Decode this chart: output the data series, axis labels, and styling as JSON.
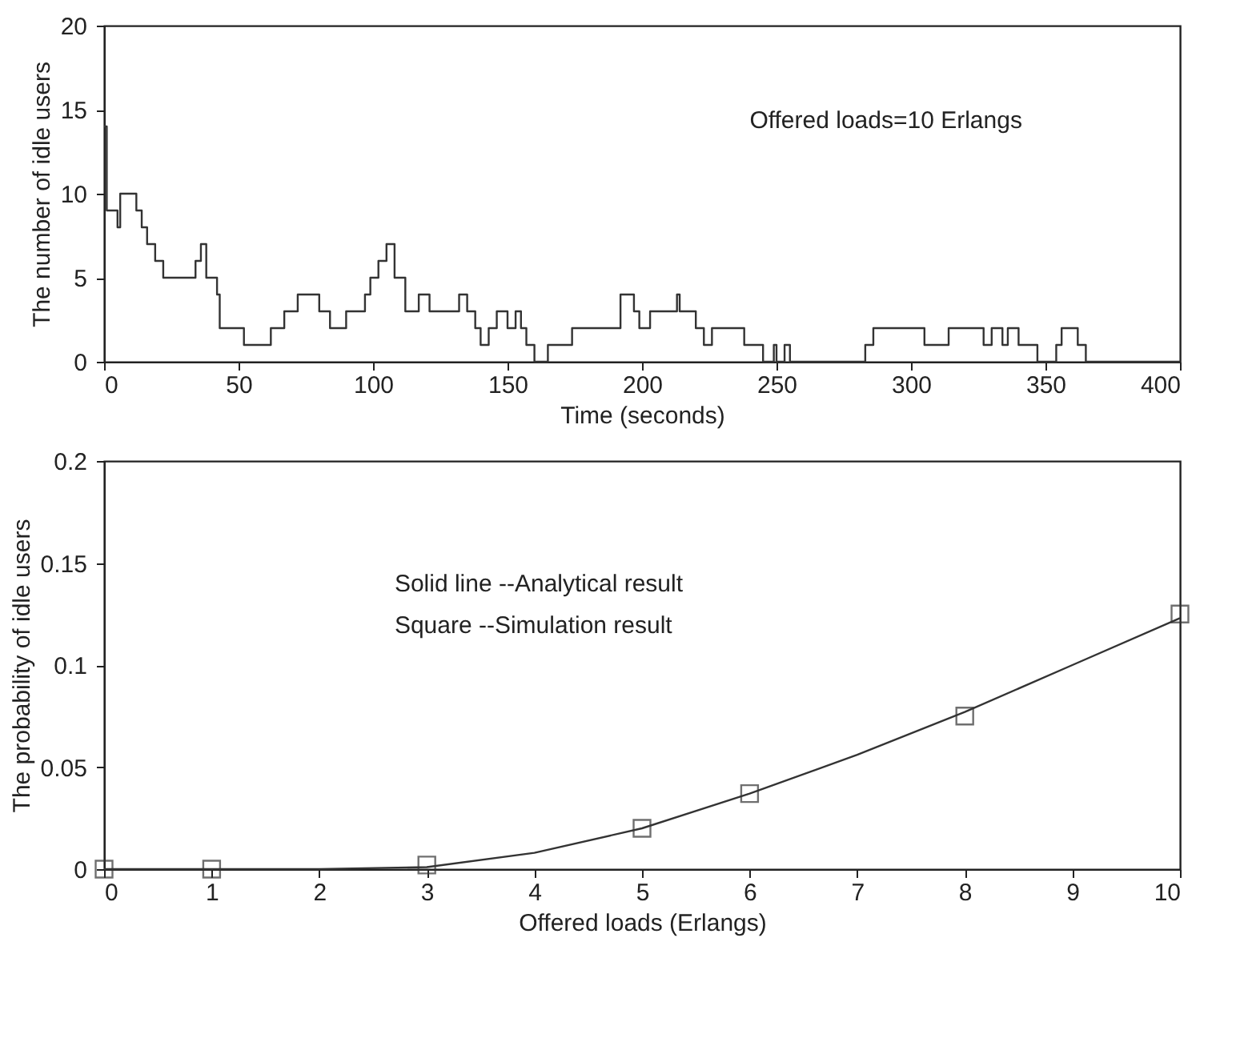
{
  "chart_data": [
    {
      "type": "step",
      "xlabel": "Time (seconds)",
      "ylabel": "The number of idle users",
      "xlim": [
        0,
        400
      ],
      "ylim": [
        0,
        20
      ],
      "xticks": [
        0,
        50,
        100,
        150,
        200,
        250,
        300,
        350,
        400
      ],
      "yticks": [
        0,
        5,
        10,
        15,
        20
      ],
      "grid": false,
      "line_style": "solid",
      "marker": "none",
      "annotations": [
        "Offered loads=10 Erlangs"
      ],
      "series": [
        {
          "color": "#333333",
          "x": [
            0,
            1,
            5,
            6,
            12,
            14,
            16,
            19,
            22,
            34,
            36,
            38,
            42,
            43,
            52,
            62,
            67,
            72,
            80,
            84,
            90,
            97,
            99,
            102,
            105,
            108,
            112,
            117,
            121,
            132,
            135,
            138,
            140,
            143,
            146,
            150,
            153,
            155,
            157,
            160,
            165,
            174,
            192,
            197,
            199,
            203,
            213,
            214,
            220,
            223,
            226,
            238,
            245,
            249,
            250,
            253,
            255,
            283,
            286,
            305,
            314,
            327,
            330,
            334,
            336,
            340,
            347,
            354,
            356,
            362,
            365,
            400
          ],
          "values": [
            14,
            9,
            8,
            10,
            9,
            8,
            7,
            6,
            5,
            6,
            7,
            5,
            4,
            2,
            1,
            2,
            3,
            4,
            3,
            2,
            3,
            4,
            5,
            6,
            7,
            5,
            3,
            4,
            3,
            4,
            3,
            2,
            1,
            2,
            3,
            2,
            3,
            2,
            1,
            0,
            1,
            2,
            4,
            3,
            2,
            3,
            4,
            3,
            2,
            1,
            2,
            1,
            0,
            1,
            0,
            1,
            0,
            1,
            2,
            1,
            2,
            1,
            2,
            1,
            2,
            1,
            0,
            1,
            2,
            1,
            0,
            0
          ]
        }
      ]
    },
    {
      "type": "line",
      "xlabel": "Offered loads (Erlangs)",
      "ylabel": "The probability of idle users",
      "xlim": [
        0,
        10
      ],
      "ylim": [
        0,
        0.2
      ],
      "xticks": [
        0,
        1,
        2,
        3,
        4,
        5,
        6,
        7,
        8,
        9,
        10
      ],
      "yticks": [
        0,
        0.05,
        0.1,
        0.15,
        0.2
      ],
      "grid": false,
      "annotations": [
        "Solid line --Analytical result",
        "Square --Simulation result"
      ],
      "series": [
        {
          "type": "line",
          "color": "#333333",
          "marker": "none",
          "line_style": "solid",
          "x": [
            0,
            1,
            2,
            3,
            4,
            5,
            6,
            7,
            8,
            9,
            10
          ],
          "values": [
            0,
            0,
            0,
            0.001,
            0.008,
            0.02,
            0.037,
            0.056,
            0.077,
            0.1,
            0.123
          ]
        },
        {
          "type": "scatter",
          "color": "#333333",
          "marker": "square",
          "x": [
            0,
            1,
            3,
            5,
            6,
            8,
            10
          ],
          "values": [
            0,
            0,
            0.002,
            0.02,
            0.037,
            0.075,
            0.125
          ]
        }
      ]
    }
  ]
}
